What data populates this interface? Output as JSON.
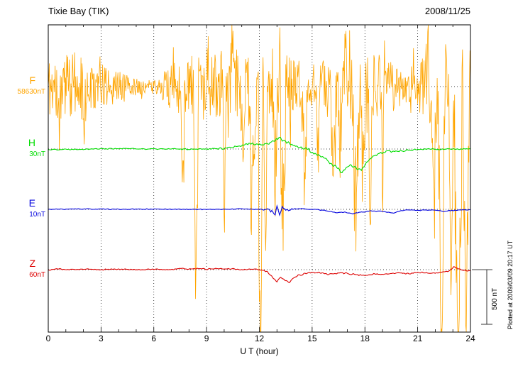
{
  "chart_data": {
    "type": "line",
    "station": "Tixie Bay (TIK)",
    "date": "2008/11/25",
    "xlabel": "U T (hour)",
    "x_range": [
      0,
      24
    ],
    "x_ticks": [
      0,
      3,
      6,
      9,
      12,
      15,
      18,
      21,
      24
    ],
    "x_minor_step": 1,
    "grid": "dotted",
    "units": "nT offset from each baseline value",
    "scale_bar": {
      "label": "500 nT",
      "nT": 500
    },
    "plotted_at": "Plotted at 2009/03/09 20:17 UT",
    "series": [
      {
        "name": "F",
        "baseline_label": "58630nT",
        "color": "#ffa500",
        "step": 0.03,
        "anchors": [
          [
            0,
            0
          ],
          [
            24,
            0
          ]
        ],
        "noise_envelope": [
          [
            0,
            300
          ],
          [
            1,
            330
          ],
          [
            2,
            300
          ],
          [
            3,
            210
          ],
          [
            4,
            150
          ],
          [
            4.7,
            90
          ],
          [
            5.5,
            60
          ],
          [
            6.3,
            70
          ],
          [
            6.8,
            200
          ],
          [
            7.5,
            280
          ],
          [
            8.5,
            300
          ],
          [
            9.5,
            320
          ],
          [
            10.5,
            340
          ],
          [
            11.5,
            380
          ],
          [
            12.5,
            400
          ],
          [
            13.5,
            380
          ],
          [
            14.2,
            260
          ],
          [
            15,
            210
          ],
          [
            16,
            290
          ],
          [
            17,
            310
          ],
          [
            18,
            330
          ],
          [
            18.8,
            300
          ],
          [
            19.5,
            250
          ],
          [
            20.2,
            160
          ],
          [
            21,
            230
          ],
          [
            21.8,
            360
          ],
          [
            22.5,
            430
          ],
          [
            23.2,
            460
          ],
          [
            24,
            440
          ]
        ],
        "spikes": [
          [
            0.6,
            -600,
            0.1
          ],
          [
            2.1,
            -700,
            0.12
          ],
          [
            7.65,
            -900,
            0.12
          ],
          [
            8.4,
            -2700,
            0.15
          ],
          [
            10.0,
            -1500,
            0.1
          ],
          [
            11.05,
            -1100,
            0.1
          ],
          [
            11.6,
            -2000,
            0.2
          ],
          [
            12.05,
            -3200,
            0.15
          ],
          [
            12.35,
            -2300,
            0.12
          ],
          [
            12.9,
            -1400,
            0.15
          ],
          [
            13.35,
            -2000,
            0.2
          ],
          [
            14.6,
            -1900,
            0.1
          ],
          [
            15.35,
            -1200,
            0.1
          ],
          [
            16.2,
            -1200,
            0.2
          ],
          [
            16.6,
            -900,
            0.15
          ],
          [
            17.5,
            -1700,
            0.2
          ],
          [
            17.9,
            -1200,
            0.15
          ],
          [
            18.3,
            -1800,
            0.12
          ],
          [
            19.0,
            -1300,
            0.1
          ],
          [
            21.9,
            -1500,
            0.2
          ],
          [
            22.35,
            -3300,
            0.2
          ],
          [
            22.9,
            -2300,
            0.15
          ],
          [
            23.3,
            -3400,
            0.25
          ],
          [
            23.75,
            -2900,
            0.2
          ],
          [
            9.05,
            600,
            0.08
          ],
          [
            10.45,
            800,
            0.08
          ],
          [
            13.15,
            820,
            0.08
          ],
          [
            16.9,
            650,
            0.08
          ],
          [
            21.6,
            840,
            0.08
          ]
        ]
      },
      {
        "name": "H",
        "baseline_label": "30nT",
        "color": "#00dd00",
        "smooth": true,
        "step": 0.05,
        "anchors": [
          [
            0,
            -5
          ],
          [
            2,
            0
          ],
          [
            4,
            5
          ],
          [
            6,
            0
          ],
          [
            8,
            0
          ],
          [
            10,
            5
          ],
          [
            10.8,
            20
          ],
          [
            11.3,
            45
          ],
          [
            11.8,
            50
          ],
          [
            12.3,
            40
          ],
          [
            12.8,
            70
          ],
          [
            13.1,
            110
          ],
          [
            13.4,
            70
          ],
          [
            13.8,
            45
          ],
          [
            14.3,
            20
          ],
          [
            14.8,
            -10
          ],
          [
            15.3,
            -60
          ],
          [
            15.8,
            -90
          ],
          [
            16.1,
            -140
          ],
          [
            16.4,
            -170
          ],
          [
            16.7,
            -215
          ],
          [
            16.9,
            -180
          ],
          [
            17.2,
            -150
          ],
          [
            17.5,
            -170
          ],
          [
            17.8,
            -195
          ],
          [
            18.1,
            -120
          ],
          [
            18.4,
            -70
          ],
          [
            18.8,
            -45
          ],
          [
            19.3,
            -25
          ],
          [
            20,
            -15
          ],
          [
            21,
            -5
          ],
          [
            22,
            0
          ],
          [
            23,
            0
          ],
          [
            24,
            0
          ]
        ],
        "noise_envelope": [
          [
            0,
            6
          ],
          [
            10,
            8
          ],
          [
            11,
            15
          ],
          [
            14,
            18
          ],
          [
            19,
            12
          ],
          [
            24,
            6
          ]
        ]
      },
      {
        "name": "E",
        "baseline_label": "10nT",
        "color": "#0000dd",
        "smooth": true,
        "step": 0.05,
        "anchors": [
          [
            0,
            0
          ],
          [
            2,
            3
          ],
          [
            4,
            0
          ],
          [
            6,
            2
          ],
          [
            8,
            0
          ],
          [
            10,
            0
          ],
          [
            11,
            5
          ],
          [
            12,
            0
          ],
          [
            12.7,
            -10
          ],
          [
            12.9,
            -45
          ],
          [
            13.0,
            25
          ],
          [
            13.15,
            -55
          ],
          [
            13.3,
            20
          ],
          [
            13.5,
            -15
          ],
          [
            13.8,
            0
          ],
          [
            14.5,
            5
          ],
          [
            15,
            0
          ],
          [
            15.8,
            -10
          ],
          [
            16.3,
            -30
          ],
          [
            16.8,
            -25
          ],
          [
            17.3,
            -40
          ],
          [
            17.8,
            -25
          ],
          [
            18.3,
            -15
          ],
          [
            19,
            -20
          ],
          [
            19.6,
            -35
          ],
          [
            20,
            -15
          ],
          [
            20.5,
            -5
          ],
          [
            21,
            -10
          ],
          [
            22,
            -5
          ],
          [
            22.5,
            -20
          ],
          [
            23,
            -10
          ],
          [
            23.5,
            -5
          ],
          [
            24,
            -5
          ]
        ],
        "noise_envelope": [
          [
            0,
            4
          ],
          [
            12,
            5
          ],
          [
            12.6,
            18
          ],
          [
            13.6,
            18
          ],
          [
            14,
            5
          ],
          [
            24,
            4
          ]
        ]
      },
      {
        "name": "Z",
        "baseline_label": "60nT",
        "color": "#dd0000",
        "smooth": true,
        "step": 0.05,
        "anchors": [
          [
            0,
            -5
          ],
          [
            0.5,
            8
          ],
          [
            1,
            0
          ],
          [
            2,
            5
          ],
          [
            3,
            0
          ],
          [
            4,
            5
          ],
          [
            5,
            0
          ],
          [
            6,
            3
          ],
          [
            7,
            0
          ],
          [
            7.5,
            10
          ],
          [
            8,
            5
          ],
          [
            8.5,
            12
          ],
          [
            9,
            5
          ],
          [
            9.5,
            10
          ],
          [
            10,
            5
          ],
          [
            10.5,
            8
          ],
          [
            11,
            0
          ],
          [
            11.5,
            5
          ],
          [
            12,
            0
          ],
          [
            12.4,
            -15
          ],
          [
            12.7,
            -60
          ],
          [
            13.0,
            -115
          ],
          [
            13.2,
            -70
          ],
          [
            13.45,
            -95
          ],
          [
            13.7,
            -120
          ],
          [
            13.9,
            -80
          ],
          [
            14.2,
            -55
          ],
          [
            14.6,
            -35
          ],
          [
            15,
            -25
          ],
          [
            15.5,
            -30
          ],
          [
            16,
            -45
          ],
          [
            16.5,
            -30
          ],
          [
            17,
            -35
          ],
          [
            17.5,
            -45
          ],
          [
            18,
            -55
          ],
          [
            18.5,
            -40
          ],
          [
            19,
            -45
          ],
          [
            19.5,
            -35
          ],
          [
            20,
            -30
          ],
          [
            20.5,
            -35
          ],
          [
            21,
            -25
          ],
          [
            21.5,
            -30
          ],
          [
            22,
            -35
          ],
          [
            22.4,
            -20
          ],
          [
            22.8,
            -10
          ],
          [
            23.05,
            25
          ],
          [
            23.3,
            10
          ],
          [
            23.6,
            -5
          ],
          [
            24,
            -10
          ]
        ],
        "noise_envelope": [
          [
            0,
            5
          ],
          [
            12,
            6
          ],
          [
            14,
            8
          ],
          [
            24,
            6
          ]
        ]
      }
    ]
  }
}
